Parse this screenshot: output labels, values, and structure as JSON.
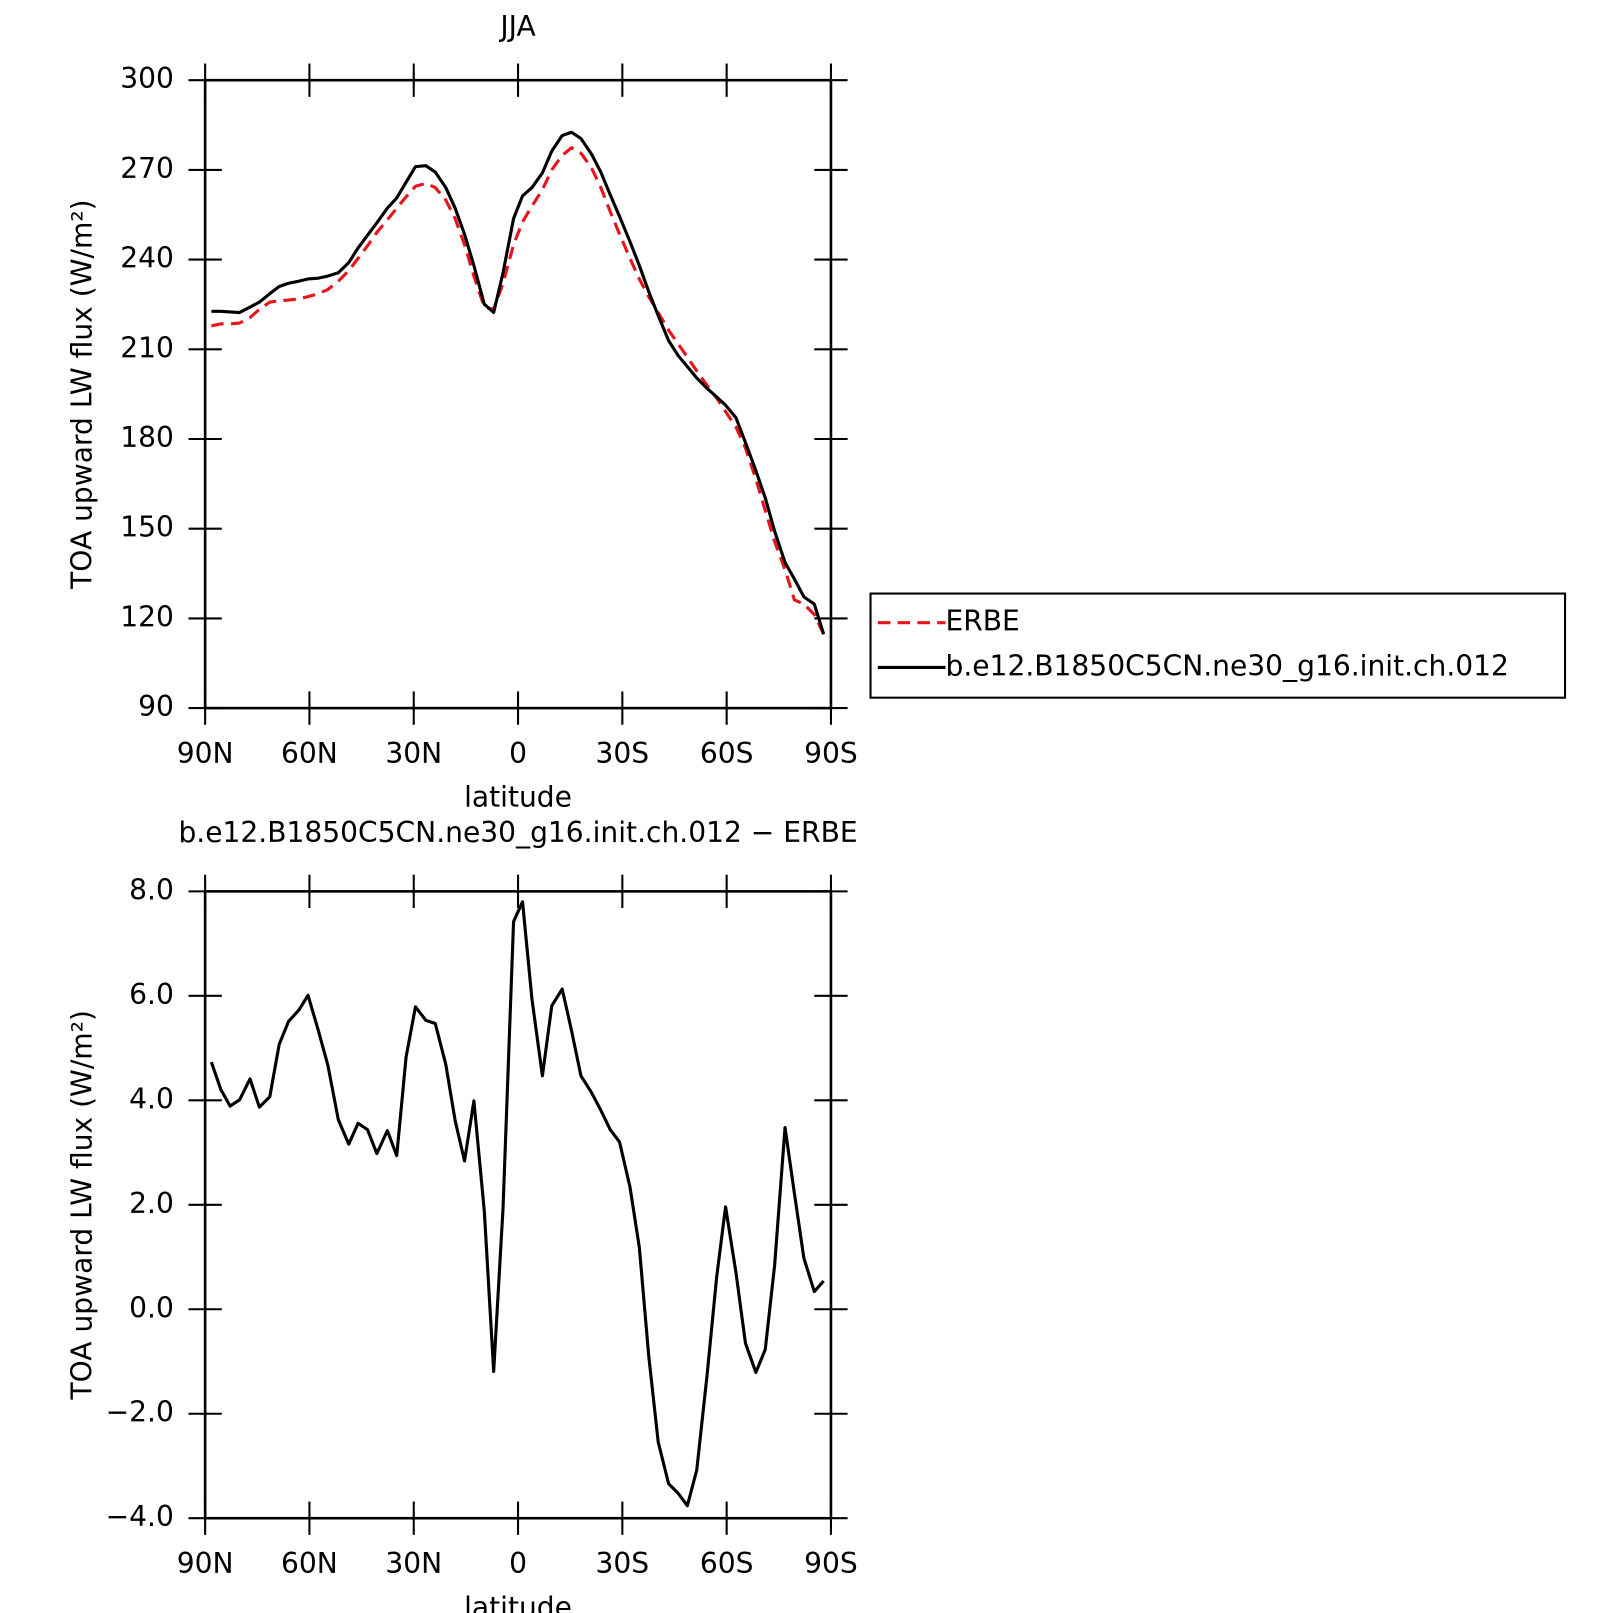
{
  "chart_data": [
    {
      "type": "line",
      "title": "JJA",
      "xlabel": "latitude",
      "ylabel": "TOA upward LW flux (W/m²)",
      "x": [
        88.2,
        85.5,
        82.8,
        80.1,
        77.1,
        74.4,
        71.4,
        68.7,
        66.0,
        63.0,
        60.4,
        57.4,
        54.7,
        51.7,
        48.7,
        46.0,
        43.3,
        40.6,
        37.6,
        34.9,
        32.2,
        29.5,
        26.5,
        23.8,
        20.8,
        18.1,
        15.4,
        12.7,
        9.7,
        7.0,
        4.3,
        1.3,
        -1.3,
        -4.0,
        -7.0,
        -9.7,
        -12.7,
        -15.4,
        -18.1,
        -21.1,
        -23.8,
        -26.5,
        -29.2,
        -32.2,
        -34.9,
        -37.6,
        -40.3,
        -43.3,
        -46.0,
        -48.7,
        -51.4,
        -54.4,
        -57.1,
        -59.7,
        -62.7,
        -65.4,
        -68.4,
        -71.1,
        -73.8,
        -76.8,
        -79.5,
        -82.2,
        -85.2,
        -87.9
      ],
      "series": [
        {
          "name": "ERBE",
          "color": "#e8141b",
          "linestyle": "dashed",
          "values": [
            217.8,
            218.5,
            218.5,
            218.8,
            220.6,
            223.4,
            225.8,
            226.2,
            226.5,
            226.9,
            227.6,
            228.6,
            230.0,
            232.8,
            236.3,
            240.4,
            244.6,
            249.1,
            253.3,
            257.2,
            261.0,
            264.5,
            265.5,
            264.1,
            259.9,
            253.7,
            245.0,
            234.5,
            224.1,
            223.4,
            232.1,
            245.0,
            252.6,
            257.9,
            263.4,
            270.0,
            274.9,
            277.4,
            275.6,
            270.7,
            264.1,
            256.1,
            248.5,
            240.4,
            233.5,
            227.6,
            222.3,
            216.4,
            211.9,
            207.4,
            202.8,
            197.9,
            193.7,
            189.2,
            184.0,
            177.0,
            166.6,
            156.1,
            145.7,
            136.3,
            126.2,
            124.8,
            121.3,
            114.7
          ]
        },
        {
          "name": "b.e12.B1850C5CN.ne30_g16.init.ch.012",
          "color": "#000000",
          "linestyle": "solid",
          "values": [
            222.7,
            222.7,
            222.5,
            222.3,
            224.1,
            225.8,
            228.6,
            231.0,
            232.1,
            232.8,
            233.5,
            233.8,
            234.5,
            235.6,
            239.0,
            243.9,
            248.1,
            252.3,
            257.2,
            260.6,
            265.9,
            271.1,
            271.4,
            269.3,
            264.1,
            257.2,
            248.5,
            238.0,
            225.1,
            222.3,
            235.6,
            253.7,
            261.3,
            264.1,
            269.0,
            276.3,
            281.5,
            282.6,
            280.5,
            275.3,
            269.3,
            261.7,
            254.4,
            246.0,
            238.0,
            229.3,
            221.3,
            212.9,
            208.0,
            204.2,
            200.4,
            196.9,
            194.1,
            191.3,
            187.1,
            178.8,
            169.4,
            160.3,
            149.2,
            138.7,
            133.2,
            127.2,
            124.8,
            114.7
          ]
        }
      ],
      "xlim": [
        90,
        -90
      ],
      "xticks": [
        {
          "value": 90,
          "label": "90N"
        },
        {
          "value": 60,
          "label": "60N"
        },
        {
          "value": 30,
          "label": "30N"
        },
        0,
        {
          "value": -30,
          "label": "30S"
        },
        {
          "value": -60,
          "label": "60S"
        },
        {
          "value": -90,
          "label": "90S"
        }
      ],
      "ylim": [
        90,
        300
      ],
      "yticks": [
        90,
        120,
        150,
        180,
        210,
        240,
        270,
        300
      ],
      "legend": "right"
    },
    {
      "type": "line",
      "title": "b.e12.B1850C5CN.ne30_g16.init.ch.012 − ERBE",
      "xlabel": "latitude",
      "ylabel": "TOA upward LW flux (W/m²)",
      "x": [
        88.2,
        85.5,
        82.8,
        80.1,
        77.1,
        74.4,
        71.4,
        68.7,
        66.0,
        63.0,
        60.4,
        57.4,
        54.7,
        51.7,
        48.7,
        46.0,
        43.3,
        40.6,
        37.6,
        34.9,
        32.2,
        29.5,
        26.5,
        23.8,
        20.8,
        18.1,
        15.4,
        12.7,
        9.7,
        7.0,
        4.3,
        1.3,
        -1.3,
        -4.0,
        -7.0,
        -9.7,
        -12.7,
        -15.4,
        -18.1,
        -21.1,
        -23.8,
        -26.5,
        -29.2,
        -32.2,
        -34.9,
        -37.6,
        -40.3,
        -43.3,
        -46.0,
        -48.7,
        -51.4,
        -54.4,
        -57.1,
        -59.7,
        -62.7,
        -65.4,
        -68.4,
        -71.1,
        -73.8,
        -76.8,
        -79.5,
        -82.2,
        -85.2,
        -87.9
      ],
      "values": [
        4.73,
        4.21,
        3.89,
        4.01,
        4.41,
        3.87,
        4.07,
        5.07,
        5.51,
        5.73,
        6.01,
        5.33,
        4.67,
        3.63,
        3.16,
        3.56,
        3.44,
        2.98,
        3.42,
        2.94,
        4.83,
        5.79,
        5.53,
        5.47,
        4.69,
        3.61,
        2.84,
        3.99,
        1.88,
        -1.19,
        1.94,
        7.42,
        7.8,
        5.93,
        4.47,
        5.81,
        6.13,
        5.33,
        4.47,
        4.15,
        3.81,
        3.44,
        3.2,
        2.34,
        1.18,
        -0.89,
        -2.54,
        -3.34,
        -3.52,
        -3.76,
        -3.08,
        -1.25,
        0.61,
        1.96,
        0.7,
        -0.65,
        -1.21,
        -0.77,
        0.84,
        3.48,
        2.22,
        0.98,
        0.34,
        0.54
      ],
      "color": "#000000",
      "linestyle": "solid",
      "xlim": [
        90,
        -90
      ],
      "xticks": [
        {
          "value": 90,
          "label": "90N"
        },
        {
          "value": 60,
          "label": "60N"
        },
        {
          "value": 30,
          "label": "30N"
        },
        0,
        {
          "value": -30,
          "label": "30S"
        },
        {
          "value": -60,
          "label": "60S"
        },
        {
          "value": -90,
          "label": "90S"
        }
      ],
      "ylim": [
        -4,
        8
      ],
      "yticks": [
        {
          "value": -4,
          "label": "−4.0"
        },
        {
          "value": -2,
          "label": "−2.0"
        },
        {
          "value": 0,
          "label": "0.0"
        },
        {
          "value": 2,
          "label": "2.0"
        },
        {
          "value": 4,
          "label": "4.0"
        },
        {
          "value": 6,
          "label": "6.0"
        },
        {
          "value": 8,
          "label": "8.0"
        }
      ]
    }
  ]
}
